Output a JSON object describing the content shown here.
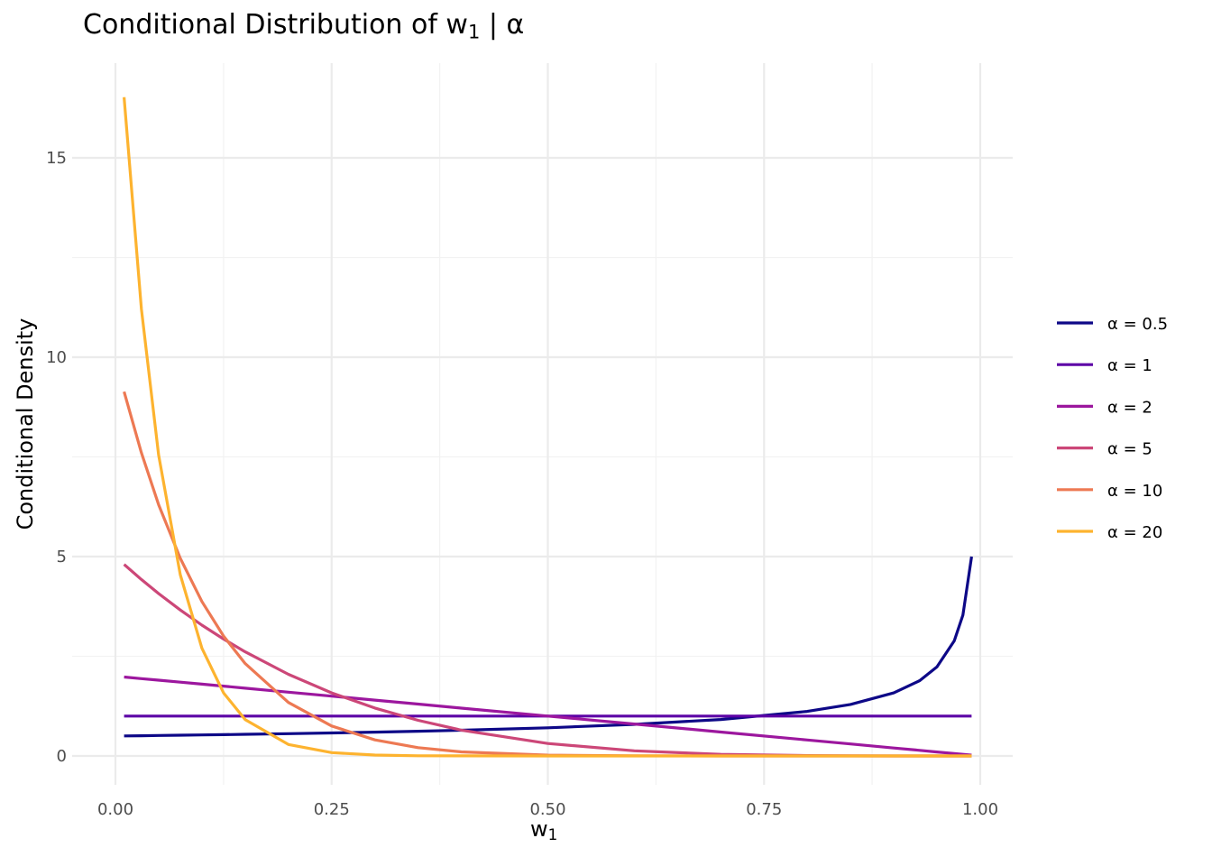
{
  "chart_data": {
    "type": "line",
    "title": "Conditional Distribution of w",
    "title_sub": "1",
    "title_suffix": " | α",
    "xlabel": "w",
    "xlabel_sub": "1",
    "ylabel": "Conditional Density",
    "xlim": [
      -0.04,
      1.04
    ],
    "ylim": [
      -0.7,
      17.4
    ],
    "x_ticks": [
      0,
      0.25,
      0.5,
      0.75,
      1
    ],
    "x_tick_labels": [
      "0.00",
      "0.25",
      "0.50",
      "0.75",
      "1.00"
    ],
    "y_ticks": [
      0,
      5,
      10,
      15
    ],
    "y_tick_labels": [
      "0",
      "5",
      "10",
      "15"
    ],
    "grid": true,
    "legend_position": "right",
    "x": [
      0.01,
      0.03,
      0.05,
      0.075,
      0.1,
      0.125,
      0.15,
      0.2,
      0.25,
      0.3,
      0.35,
      0.4,
      0.5,
      0.6,
      0.7,
      0.8,
      0.85,
      0.9,
      0.93,
      0.95,
      0.97,
      0.98,
      0.99
    ],
    "series": [
      {
        "name": "α = 0.5",
        "color": "#0D0887",
        "values": [
          0.5025,
          0.5077,
          0.513,
          0.52,
          0.527,
          0.5345,
          0.5423,
          0.559,
          0.577,
          0.598,
          0.62,
          0.645,
          0.707,
          0.791,
          0.913,
          1.118,
          1.291,
          1.581,
          1.89,
          2.236,
          2.887,
          3.536,
          5.0
        ]
      },
      {
        "name": "α = 1",
        "color": "#5D01A6",
        "values": [
          1,
          1,
          1,
          1,
          1,
          1,
          1,
          1,
          1,
          1,
          1,
          1,
          1,
          1,
          1,
          1,
          1,
          1,
          1,
          1,
          1,
          1,
          1
        ]
      },
      {
        "name": "α = 2",
        "color": "#9C179E",
        "values": [
          1.98,
          1.94,
          1.9,
          1.85,
          1.8,
          1.75,
          1.7,
          1.6,
          1.5,
          1.4,
          1.3,
          1.2,
          1.0,
          0.8,
          0.6,
          0.4,
          0.3,
          0.2,
          0.14,
          0.1,
          0.06,
          0.04,
          0.02
        ]
      },
      {
        "name": "α = 5",
        "color": "#CC4778",
        "values": [
          4.803,
          4.426,
          4.073,
          3.66,
          3.281,
          2.931,
          2.61,
          2.048,
          1.582,
          1.2005,
          0.893,
          0.648,
          0.3125,
          0.128,
          0.0405,
          0.008,
          0.0025,
          0.0005,
          0.0001,
          0,
          0,
          0,
          0
        ]
      },
      {
        "name": "α = 10",
        "color": "#ED7953",
        "values": [
          9.135,
          7.603,
          6.302,
          4.958,
          3.874,
          3.007,
          2.316,
          1.342,
          0.751,
          0.4035,
          0.2071,
          0.1008,
          0.0195,
          0.0026,
          0.0002,
          0,
          0,
          0,
          0,
          0,
          0,
          0,
          0
        ]
      },
      {
        "name": "α = 20",
        "color": "#FDB32F",
        "values": [
          16.52,
          11.21,
          7.548,
          4.548,
          2.702,
          1.582,
          0.912,
          0.2884,
          0.0846,
          0.0228,
          0.0056,
          0.0012,
          0,
          0,
          0,
          0,
          0,
          0,
          0,
          0,
          0,
          0,
          0
        ]
      }
    ]
  }
}
